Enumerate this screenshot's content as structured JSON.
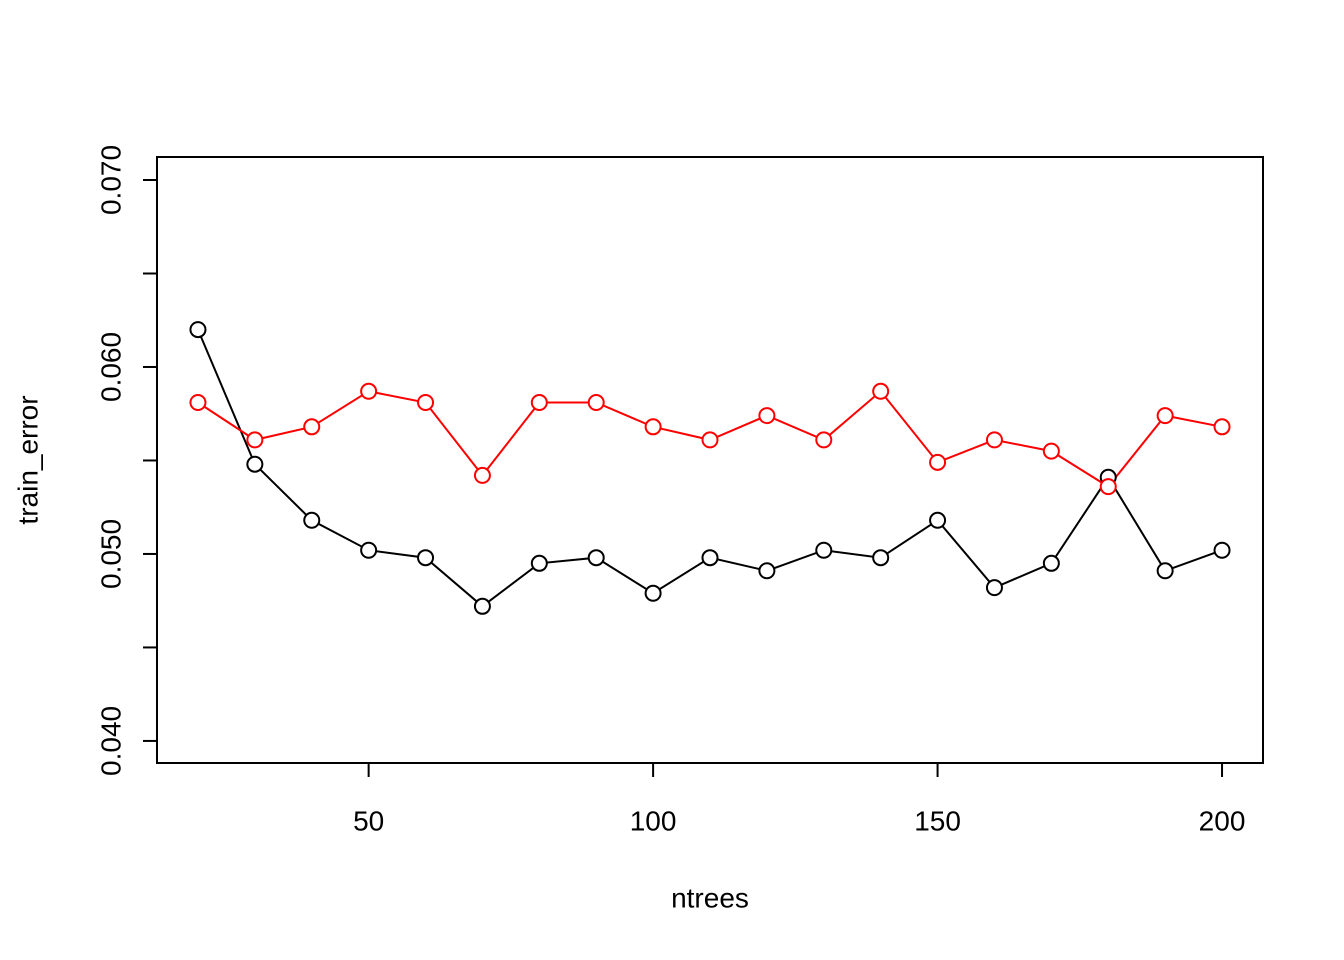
{
  "chart_data": {
    "type": "line",
    "xlabel": "ntrees",
    "ylabel": "train_error",
    "x": [
      20,
      30,
      40,
      50,
      60,
      70,
      80,
      90,
      100,
      110,
      120,
      130,
      140,
      150,
      160,
      170,
      180,
      190,
      200
    ],
    "series": [
      {
        "color": "#000000",
        "values": [
          0.062,
          0.0548,
          0.0518,
          0.0502,
          0.0498,
          0.0472,
          0.0495,
          0.0498,
          0.0479,
          0.0498,
          0.0491,
          0.0502,
          0.0498,
          0.0518,
          0.0482,
          0.0495,
          0.0541,
          0.0491,
          0.0502
        ]
      },
      {
        "color": "#ff0000",
        "values": [
          0.0581,
          0.0561,
          0.0568,
          0.0587,
          0.0581,
          0.0542,
          0.0581,
          0.0581,
          0.0568,
          0.0561,
          0.0574,
          0.0561,
          0.0587,
          0.0549,
          0.0561,
          0.0555,
          0.0536,
          0.0574,
          0.0568
        ]
      }
    ],
    "xlim": [
      12.8,
      207.2
    ],
    "xticks": [
      50,
      100,
      150,
      200
    ],
    "ylim": [
      0.03882,
      0.07123
    ],
    "yticks": [
      {
        "value": 0.04,
        "label": "0.040"
      },
      {
        "value": 0.045,
        "label": null
      },
      {
        "value": 0.05,
        "label": "0.050"
      },
      {
        "value": 0.055,
        "label": null
      },
      {
        "value": 0.06,
        "label": "0.060"
      },
      {
        "value": 0.065,
        "label": null
      },
      {
        "value": 0.07,
        "label": "0.070"
      }
    ]
  }
}
